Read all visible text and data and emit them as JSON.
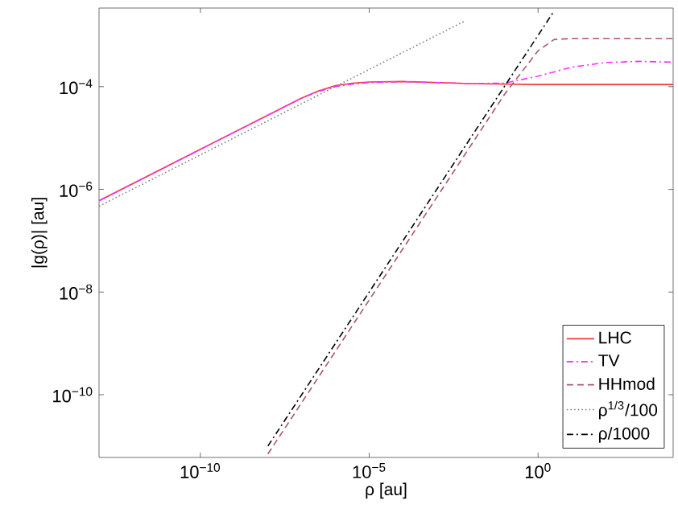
{
  "chart_data": {
    "type": "line",
    "xlabel": "ρ [au]",
    "ylabel": "|g(ρ)| [au]",
    "log": "xy",
    "xlim": [
      1e-13,
      10000.0
    ],
    "ylim": [
      6e-12,
      0.0034
    ],
    "xticks": [
      {
        "value": 1e-10,
        "label": "10$^{−10}$"
      },
      {
        "value": 1e-05,
        "label": "10$^{−5}$"
      },
      {
        "value": 1,
        "label": "10$^{0}$"
      }
    ],
    "yticks": [
      {
        "value": 1e-10,
        "label": "10$^{−10}$"
      },
      {
        "value": 1e-08,
        "label": "10$^{−8}$"
      },
      {
        "value": 1e-06,
        "label": "10$^{−6}$"
      },
      {
        "value": 0.0001,
        "label": "10$^{−4}$"
      }
    ],
    "grid": false,
    "legend": "bottom right",
    "marker": "none",
    "series": [
      {
        "name": "LHC",
        "color": "#f0383c",
        "line_style": "solid",
        "x": [
          1e-13,
          1e-10,
          1e-07,
          3.2e-07,
          1e-06,
          3.2e-06,
          1e-05,
          0.0001,
          0.01,
          1,
          10000.0
        ],
        "values": [
          6e-07,
          6e-06,
          6e-05,
          8.3e-05,
          0.000105,
          0.000117,
          0.000123,
          0.000126,
          0.000115,
          0.00011,
          0.00011
        ]
      },
      {
        "name": "TV",
        "color": "#ff30ff",
        "line_style": "dashdot",
        "x": [
          1e-13,
          1e-10,
          1e-07,
          3.2e-07,
          1e-06,
          3.2e-06,
          1e-05,
          0.0001,
          0.01,
          0.1,
          1,
          10,
          100,
          1000,
          10000.0
        ],
        "values": [
          6e-07,
          6e-06,
          6e-05,
          8.1e-05,
          0.0001,
          0.000112,
          0.00012,
          0.000125,
          0.000115,
          0.000117,
          0.00016,
          0.00024,
          0.000295,
          0.00031,
          0.0003
        ]
      },
      {
        "name": "HHmod",
        "color": "#a8586a",
        "line_style": "dashed",
        "x": [
          1e-08,
          0.0001,
          0.1,
          1,
          3,
          10,
          10000.0
        ],
        "values": [
          7e-12,
          7e-08,
          7e-05,
          0.0005,
          0.00083,
          0.00087,
          0.00087
        ]
      },
      {
        "name": "ρ$^{1/3}$/100",
        "color": "#808080",
        "line_style": "dotted",
        "x": [
          1e-13,
          0.0068
        ],
        "values": [
          4.7e-07,
          0.0019
        ]
      },
      {
        "name": "ρ/1000",
        "color": "#000000",
        "line_style": "dashdot",
        "x": [
          1e-08,
          3
        ],
        "values": [
          1e-11,
          0.003
        ]
      }
    ]
  }
}
